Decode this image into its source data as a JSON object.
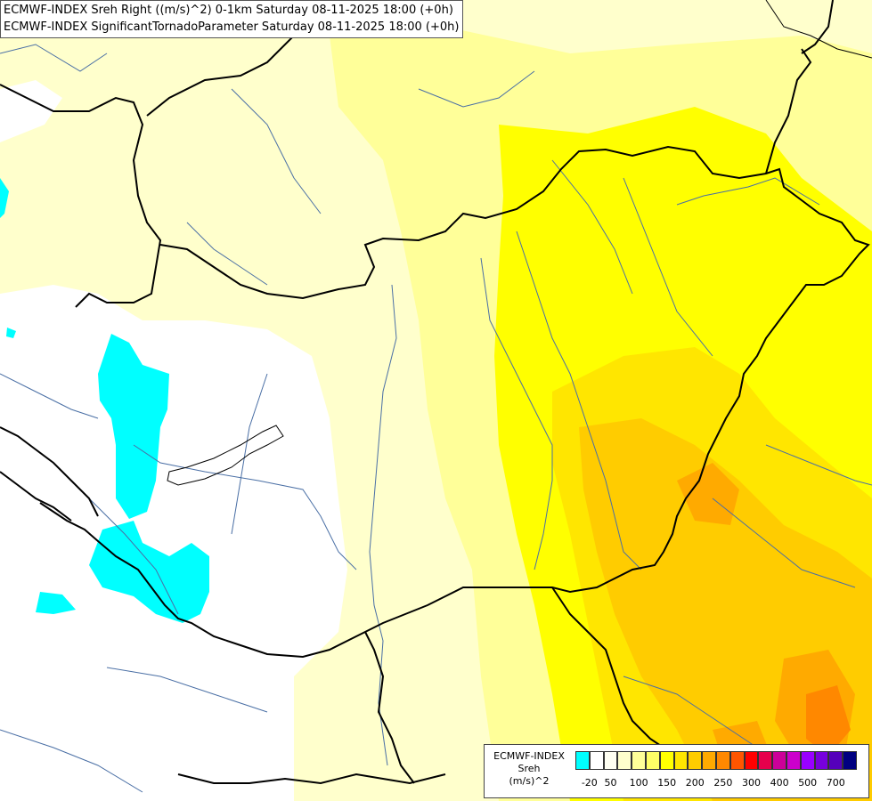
{
  "title": {
    "line1": "ECMWF-INDEX Sreh Right ((m/s)^2) 0-1km Saturday 08-11-2025 18:00 (+0h)",
    "line2": "ECMWF-INDEX SignificantTornadoParameter Saturday 08-11-2025 18:00 (+0h)"
  },
  "legend": {
    "line1": "ECMWF-INDEX",
    "line2": "Sreh",
    "line3": "(m/s)^2",
    "colors": [
      "#00ffff",
      "#ffffff",
      "#fffff2",
      "#ffffcc",
      "#ffff99",
      "#ffff66",
      "#ffff00",
      "#ffe600",
      "#ffcc00",
      "#ffaa00",
      "#ff8800",
      "#ff5500",
      "#ff0000",
      "#e6004c",
      "#cc0099",
      "#cc00cc",
      "#9900ff",
      "#7700dd",
      "#5500bb",
      "#000080"
    ],
    "ticks": [
      "-20",
      "50",
      "100",
      "150",
      "200",
      "250",
      "300",
      "400",
      "500",
      "700"
    ]
  },
  "colors": {
    "low_cyan": "#00ffff",
    "pale_yellow": "#ffffcc",
    "yellow": "#ffff00",
    "orange": "#ffcc00",
    "dark_orange": "#ff9900",
    "border": "#000000",
    "river": "#4a6fa5"
  }
}
